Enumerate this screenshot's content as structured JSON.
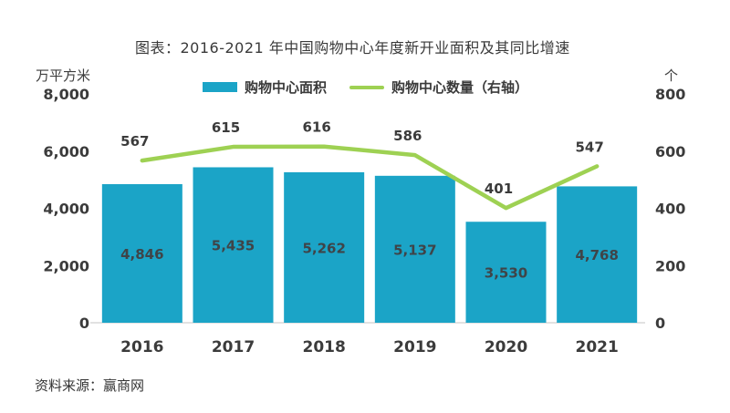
{
  "page": {
    "title": "图表：2016-2021 年中国购物中心年度新开业面积及其同比增速",
    "source": "资料来源：赢商网"
  },
  "colors": {
    "bar": "#1ba4c7",
    "line": "#9ed153",
    "axis_line": "#d9d9d9",
    "text": "#3b3b3b"
  },
  "chart_data": {
    "type": "bar",
    "subtype": "bar+line combo",
    "title": "图表：2016-2021 年中国购物中心年度新开业面积及其同比增速",
    "categories": [
      "2016",
      "2017",
      "2018",
      "2019",
      "2020",
      "2021"
    ],
    "series": [
      {
        "name": "购物中心面积",
        "type": "bar",
        "axis": "left",
        "values": [
          4846,
          5435,
          5262,
          5137,
          3530,
          4768
        ],
        "labels": [
          "4,846",
          "5,435",
          "5,262",
          "5,137",
          "3,530",
          "4,768"
        ]
      },
      {
        "name": "购物中心数量（右轴）",
        "type": "line",
        "axis": "right",
        "values": [
          567,
          615,
          616,
          586,
          401,
          547
        ],
        "labels": [
          "567",
          "615",
          "616",
          "586",
          "401",
          "547"
        ]
      }
    ],
    "left_axis": {
      "unit": "万平方米",
      "ticks": [
        0,
        2000,
        4000,
        6000,
        8000
      ],
      "tick_labels": [
        "0",
        "2,000",
        "4,000",
        "6,000",
        "8,000"
      ],
      "max": 8000
    },
    "right_axis": {
      "unit": "个",
      "ticks": [
        0,
        200,
        400,
        600,
        800
      ],
      "tick_labels": [
        "0",
        "200",
        "400",
        "600",
        "800"
      ],
      "max": 800
    },
    "legend_position": "top",
    "grid": false
  }
}
